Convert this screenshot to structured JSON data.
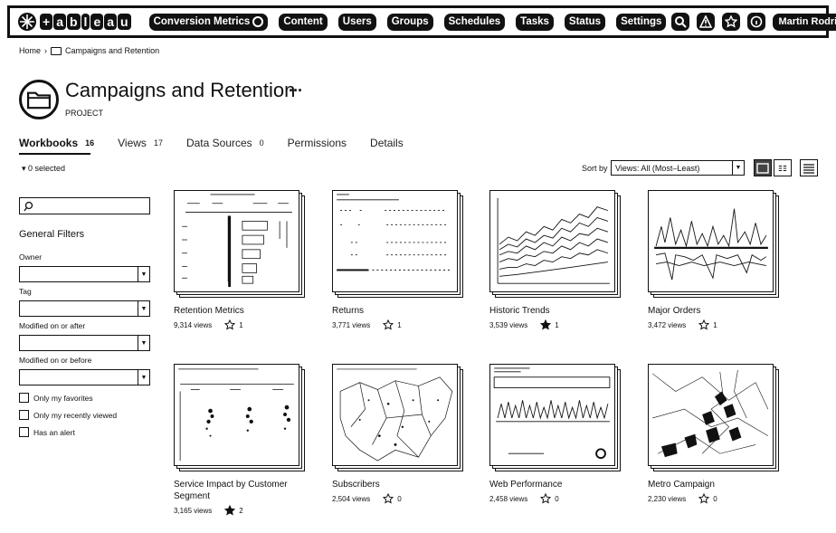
{
  "nav": {
    "brand": [
      "+",
      "a",
      "b",
      "l",
      "e",
      "a",
      "u"
    ],
    "site": "Conversion Metrics",
    "items": [
      "Content",
      "Users",
      "Groups",
      "Schedules",
      "Tasks",
      "Status",
      "Settings"
    ],
    "user": "Martin Rodriguez"
  },
  "breadcrumb": {
    "home": "Home",
    "current": "Campaigns and Retention"
  },
  "project": {
    "title": "Campaigns and Retention",
    "type": "PROJECT",
    "more": "···"
  },
  "tabs": [
    {
      "label": "Workbooks",
      "count": "16"
    },
    {
      "label": "Views",
      "count": "17"
    },
    {
      "label": "Data Sources",
      "count": "0"
    },
    {
      "label": "Permissions",
      "count": ""
    },
    {
      "label": "Details",
      "count": ""
    }
  ],
  "toolbar": {
    "selected": "▾ 0 selected",
    "sort_label": "Sort by",
    "sort_value": "Views: All (Most–Least)"
  },
  "filters": {
    "title": "General Filters",
    "owner": "Owner",
    "tag": "Tag",
    "modified_after": "Modified on or after",
    "modified_before": "Modified on or before",
    "only_favorites": "Only my favorites",
    "only_recent": "Only my recently viewed",
    "has_alert": "Has an alert"
  },
  "workbooks": [
    {
      "name": "Retention Metrics",
      "views": "9,314 views",
      "favs": "1",
      "fav_filled": false
    },
    {
      "name": "Returns",
      "views": "3,771 views",
      "favs": "1",
      "fav_filled": false
    },
    {
      "name": "Historic Trends",
      "views": "3,539 views",
      "favs": "1",
      "fav_filled": true
    },
    {
      "name": "Major Orders",
      "views": "3,472 views",
      "favs": "1",
      "fav_filled": false
    },
    {
      "name": "Service Impact by Customer Segment",
      "views": "3,165 views",
      "favs": "2",
      "fav_filled": true
    },
    {
      "name": "Subscribers",
      "views": "2,504 views",
      "favs": "0",
      "fav_filled": false
    },
    {
      "name": "Web Performance",
      "views": "2,458 views",
      "favs": "0",
      "fav_filled": false
    },
    {
      "name": "Metro Campaign",
      "views": "2,230 views",
      "favs": "0",
      "fav_filled": false
    }
  ],
  "colors": {
    "ink": "#111111",
    "background": "#ffffff"
  }
}
